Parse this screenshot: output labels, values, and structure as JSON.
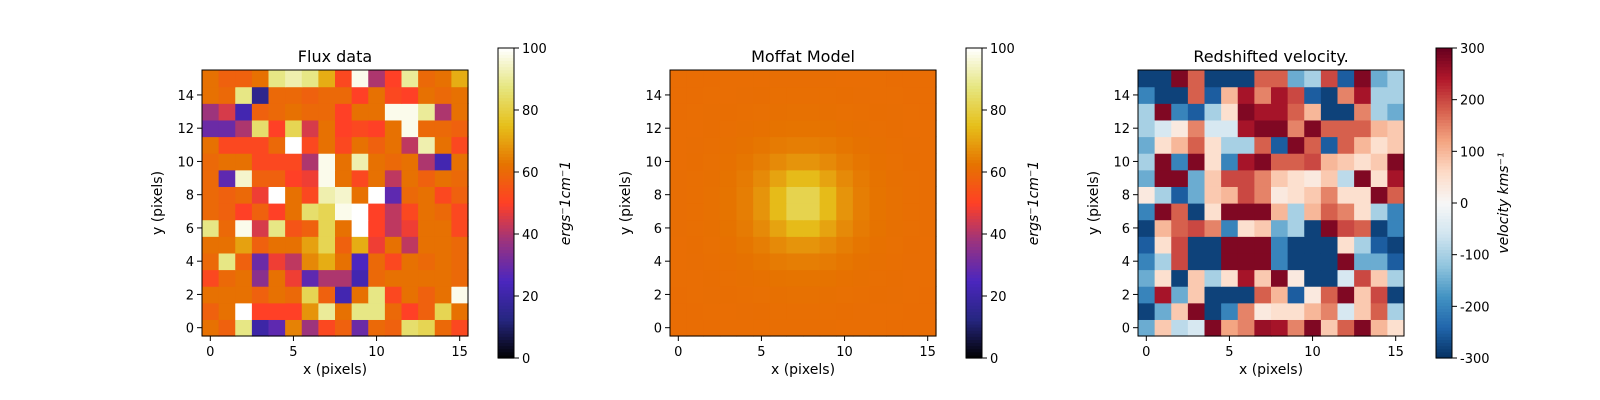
{
  "chart_data": [
    {
      "type": "heatmap",
      "title": "Flux data",
      "xlabel": "x (pixels)",
      "ylabel": "y (pixels)",
      "colorbar_label": "ergs⁻1cm⁻1",
      "colormap": "CMRmap",
      "vlim": [
        0,
        100
      ],
      "xlim": [
        -0.5,
        15.5
      ],
      "ylim": [
        -0.5,
        15.5
      ],
      "xticks": [
        0,
        5,
        10,
        15
      ],
      "yticks": [
        0,
        2,
        4,
        6,
        8,
        10,
        12,
        14
      ],
      "cbar_ticks": [
        0,
        20,
        40,
        60,
        80,
        100
      ],
      "grid": false,
      "z": [
        [
          62,
          58,
          88,
          20,
          28,
          65,
          38,
          52,
          58,
          30,
          60,
          58,
          85,
          82,
          60,
          52
        ],
        [
          58,
          62,
          100,
          50,
          50,
          50,
          68,
          90,
          62,
          88,
          88,
          60,
          50,
          58,
          82,
          62
        ],
        [
          62,
          62,
          62,
          58,
          62,
          60,
          82,
          58,
          22,
          62,
          88,
          52,
          62,
          58,
          62,
          98
        ],
        [
          52,
          60,
          62,
          35,
          62,
          48,
          28,
          40,
          40,
          22,
          60,
          62,
          62,
          62,
          62,
          60
        ],
        [
          60,
          88,
          58,
          30,
          48,
          42,
          66,
          72,
          62,
          25,
          60,
          52,
          62,
          60,
          62,
          60
        ],
        [
          62,
          62,
          70,
          58,
          62,
          62,
          70,
          82,
          58,
          72,
          48,
          62,
          42,
          62,
          62,
          60
        ],
        [
          88,
          60,
          98,
          45,
          88,
          55,
          58,
          82,
          62,
          100,
          50,
          42,
          48,
          62,
          62,
          52
        ],
        [
          60,
          58,
          50,
          58,
          50,
          62,
          85,
          82,
          98,
          100,
          50,
          42,
          52,
          62,
          60,
          52
        ],
        [
          60,
          58,
          60,
          48,
          100,
          62,
          52,
          92,
          95,
          62,
          100,
          28,
          60,
          62,
          52,
          58
        ],
        [
          60,
          28,
          95,
          58,
          58,
          50,
          48,
          98,
          62,
          52,
          62,
          42,
          62,
          58,
          62,
          60
        ],
        [
          60,
          62,
          62,
          52,
          52,
          52,
          40,
          98,
          62,
          92,
          62,
          60,
          62,
          40,
          22,
          62
        ],
        [
          62,
          52,
          52,
          52,
          60,
          100,
          52,
          62,
          52,
          62,
          58,
          62,
          42,
          92,
          62,
          52
        ],
        [
          30,
          30,
          40,
          85,
          50,
          82,
          45,
          62,
          50,
          52,
          50,
          62,
          98,
          60,
          60,
          58
        ],
        [
          38,
          45,
          22,
          58,
          60,
          62,
          60,
          60,
          50,
          62,
          62,
          98,
          98,
          90,
          40,
          62
        ],
        [
          62,
          60,
          88,
          15,
          60,
          60,
          58,
          60,
          60,
          50,
          62,
          52,
          50,
          62,
          60,
          62
        ],
        [
          62,
          58,
          58,
          62,
          88,
          92,
          88,
          72,
          52,
          98,
          40,
          50,
          90,
          60,
          62,
          72
        ]
      ]
    },
    {
      "type": "heatmap",
      "title": "Moffat Model",
      "xlabel": "x (pixels)",
      "ylabel": "y (pixels)",
      "colorbar_label": "ergs⁻1cm⁻1",
      "colormap": "CMRmap",
      "vlim": [
        0,
        100
      ],
      "xlim": [
        -0.5,
        15.5
      ],
      "ylim": [
        -0.5,
        15.5
      ],
      "xticks": [
        0,
        5,
        10,
        15
      ],
      "yticks": [
        0,
        2,
        4,
        6,
        8,
        10,
        12,
        14
      ],
      "cbar_ticks": [
        0,
        20,
        40,
        60,
        80,
        100
      ],
      "grid": false,
      "model": {
        "function": "Moffat",
        "center_x": 7.5,
        "center_y": 7.5,
        "amplitude": 23,
        "background": 61,
        "alpha": 3.0,
        "beta": 2.2
      }
    },
    {
      "type": "heatmap",
      "title": "Redshifted velocity.",
      "xlabel": "x (pixels)",
      "ylabel": "y (pixels)",
      "colorbar_label": "velocity kms⁻¹",
      "colormap": "RdBu_r",
      "vlim": [
        -300,
        300
      ],
      "xlim": [
        -0.5,
        15.5
      ],
      "ylim": [
        -0.5,
        15.5
      ],
      "xticks": [
        0,
        5,
        10,
        15
      ],
      "yticks": [
        0,
        2,
        4,
        6,
        8,
        10,
        12,
        14
      ],
      "cbar_ticks": [
        -300,
        -200,
        -100,
        0,
        100,
        200,
        300
      ],
      "grid": false,
      "z": [
        [
          -150,
          80,
          -80,
          -50,
          280,
          120,
          150,
          260,
          250,
          150,
          280,
          80,
          180,
          280,
          100,
          50
        ],
        [
          -280,
          -150,
          80,
          280,
          -280,
          -200,
          150,
          30,
          50,
          50,
          100,
          150,
          -50,
          80,
          180,
          -100
        ],
        [
          -200,
          250,
          -150,
          80,
          -280,
          -280,
          -280,
          180,
          100,
          -250,
          30,
          180,
          280,
          80,
          200,
          -280
        ],
        [
          -150,
          50,
          -280,
          80,
          -100,
          50,
          250,
          80,
          280,
          30,
          -280,
          -280,
          -50,
          200,
          80,
          -100
        ],
        [
          -200,
          -100,
          200,
          -280,
          -280,
          280,
          280,
          280,
          -200,
          -280,
          -280,
          -280,
          280,
          -150,
          -150,
          -250
        ],
        [
          -250,
          50,
          200,
          -280,
          -280,
          280,
          280,
          280,
          -200,
          -280,
          -280,
          -280,
          50,
          -100,
          -250,
          -280
        ],
        [
          -280,
          100,
          180,
          200,
          150,
          -200,
          50,
          80,
          -150,
          -100,
          -280,
          280,
          200,
          180,
          -280,
          -200
        ],
        [
          -200,
          280,
          180,
          -280,
          50,
          280,
          280,
          280,
          100,
          -100,
          100,
          180,
          150,
          50,
          -100,
          -200
        ],
        [
          30,
          -100,
          -250,
          -150,
          80,
          100,
          200,
          150,
          30,
          50,
          80,
          150,
          50,
          50,
          280,
          180
        ],
        [
          -150,
          280,
          280,
          -150,
          80,
          200,
          200,
          150,
          80,
          50,
          30,
          80,
          -80,
          280,
          50,
          250
        ],
        [
          -100,
          280,
          -200,
          280,
          50,
          -200,
          250,
          280,
          180,
          180,
          200,
          100,
          80,
          50,
          80,
          280
        ],
        [
          -150,
          50,
          100,
          180,
          50,
          -100,
          -100,
          180,
          -250,
          280,
          180,
          -250,
          180,
          100,
          50,
          80
        ],
        [
          -100,
          -50,
          30,
          150,
          -50,
          -50,
          250,
          280,
          280,
          150,
          280,
          180,
          180,
          180,
          100,
          80
        ],
        [
          -100,
          280,
          -200,
          -250,
          -100,
          50,
          280,
          250,
          250,
          180,
          100,
          -280,
          -280,
          150,
          -100,
          -150
        ],
        [
          -200,
          -280,
          -280,
          180,
          -250,
          100,
          250,
          150,
          250,
          200,
          -250,
          -280,
          150,
          250,
          -100,
          -100
        ],
        [
          -280,
          -280,
          280,
          180,
          -280,
          -280,
          -280,
          180,
          180,
          -150,
          -100,
          200,
          -250,
          280,
          -150,
          -100
        ]
      ]
    }
  ]
}
